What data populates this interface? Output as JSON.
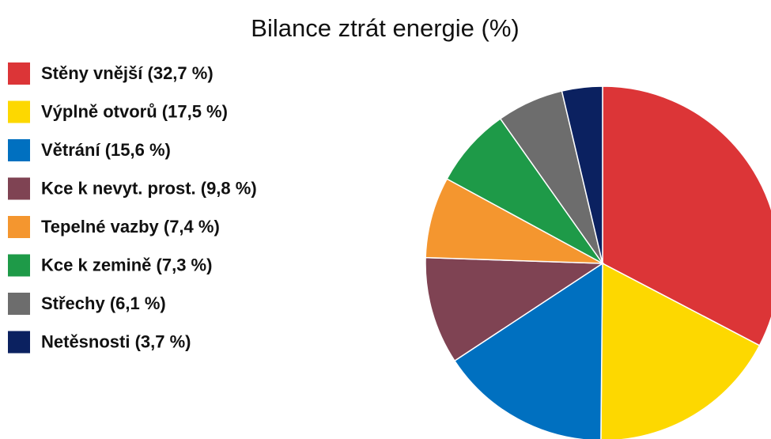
{
  "chart_data": {
    "type": "pie",
    "title": "Bilance ztrát energie (%)",
    "categories": [
      "Stěny vnější (32,7 %)",
      "Výplně otvorů (17,5 %)",
      "Větrání (15,6 %)",
      "Kce k nevyt. prost. (9,8 %)",
      "Tepelné vazby (7,4 %)",
      "Kce k zemině (7,3 %)",
      "Střechy (6,1 %)",
      "Netěsnosti (3,7 %)"
    ],
    "values": [
      32.7,
      17.5,
      15.6,
      9.8,
      7.4,
      7.3,
      6.1,
      3.7
    ],
    "colors": [
      "#dc3537",
      "#fdd800",
      "#0070c0",
      "#7f4353",
      "#f4962f",
      "#1e9a48",
      "#6d6d6d",
      "#0b2160"
    ],
    "legend": "left"
  }
}
